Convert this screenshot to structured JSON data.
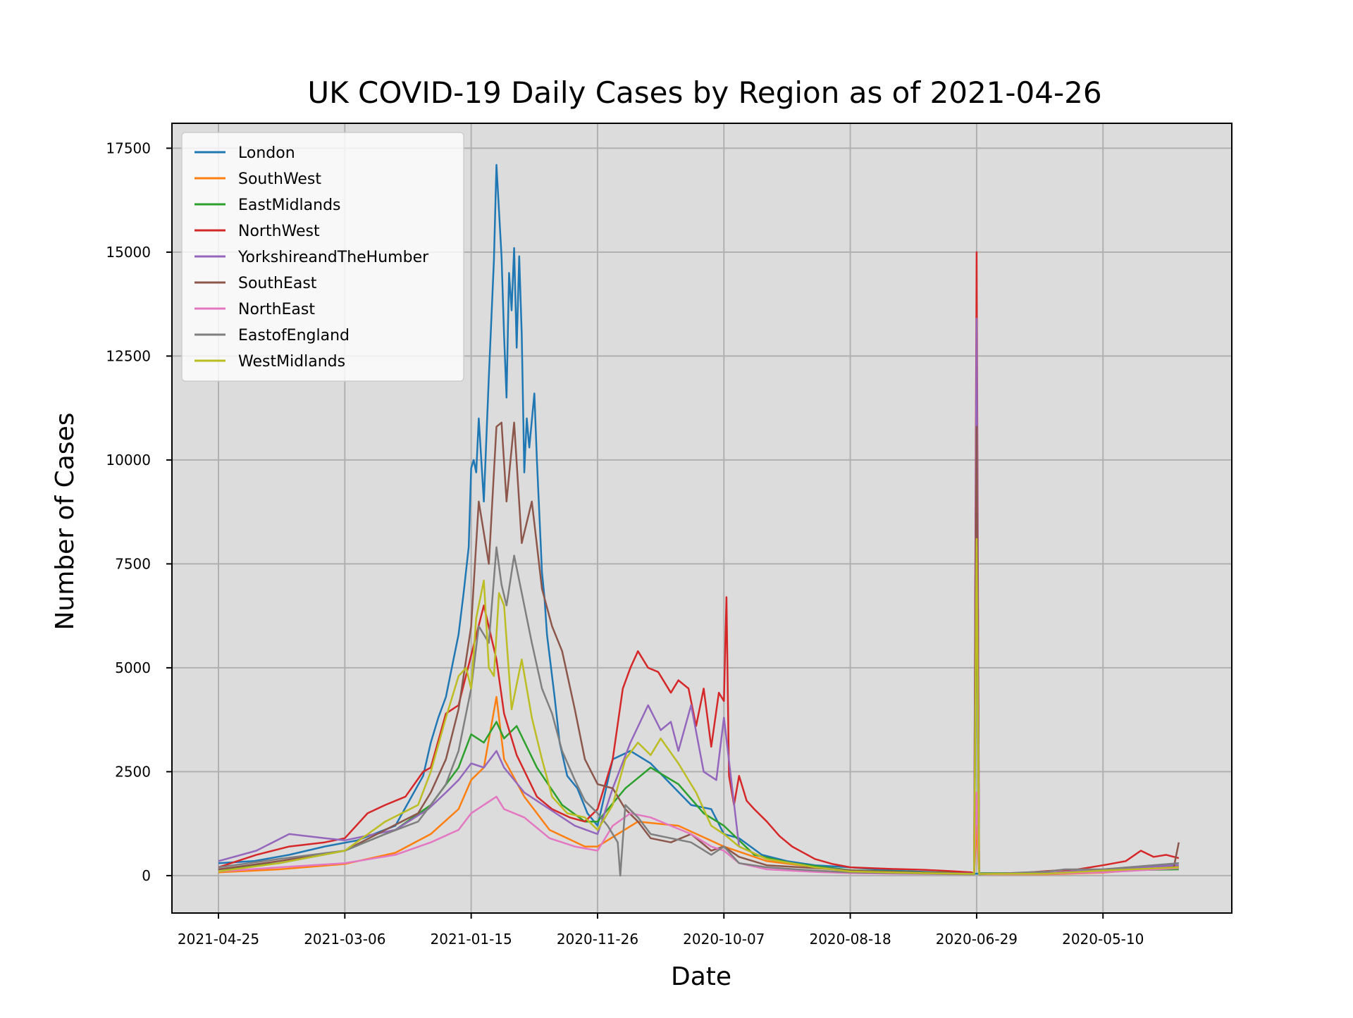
{
  "chart_data": {
    "type": "line",
    "title": "UK COVID-19 Daily Cases by Region as of 2021-04-26",
    "xlabel": "Date",
    "ylabel": "Number of Cases",
    "x_axis_direction": "reversed (newest date on the left)",
    "x_range": [
      "2021-04-25",
      "2020-04-08"
    ],
    "xticks": [
      "2021-04-25",
      "2021-03-06",
      "2021-01-15",
      "2020-11-26",
      "2020-10-07",
      "2020-08-18",
      "2020-06-29",
      "2020-05-10"
    ],
    "ylim": [
      -900,
      18100
    ],
    "yticks": [
      0,
      2500,
      5000,
      7500,
      10000,
      12500,
      15000,
      17500
    ],
    "grid": true,
    "background": "#dcdcdc",
    "legend_position": "top-left",
    "series": [
      {
        "name": "London",
        "color": "#1f77b4",
        "x": [
          "2021-04-25",
          "2021-04-11",
          "2021-03-28",
          "2021-03-14",
          "2021-03-01",
          "2021-02-14",
          "2021-02-03",
          "2021-01-31",
          "2021-01-28",
          "2021-01-25",
          "2021-01-22",
          "2021-01-20",
          "2021-01-18",
          "2021-01-16",
          "2021-01-15",
          "2021-01-14",
          "2021-01-13",
          "2021-01-12",
          "2021-01-10",
          "2021-01-08",
          "2021-01-06",
          "2021-01-05",
          "2021-01-03",
          "2021-01-02",
          "2021-01-01",
          "2020-12-31",
          "2020-12-30",
          "2020-12-29",
          "2020-12-28",
          "2020-12-27",
          "2020-12-26",
          "2020-12-25",
          "2020-12-24",
          "2020-12-23",
          "2020-12-21",
          "2020-12-20",
          "2020-12-18",
          "2020-12-17",
          "2020-12-16",
          "2020-12-15",
          "2020-12-13",
          "2020-12-11",
          "2020-12-08",
          "2020-12-04",
          "2020-11-30",
          "2020-11-26",
          "2020-11-20",
          "2020-11-13",
          "2020-11-05",
          "2020-10-28",
          "2020-10-20",
          "2020-10-12",
          "2020-10-07",
          "2020-10-01",
          "2020-09-22",
          "2020-09-12",
          "2020-09-01",
          "2020-08-18",
          "2020-08-01",
          "2020-07-15",
          "2020-07-01",
          "2020-06-30",
          "2020-06-29",
          "2020-06-28",
          "2020-06-20",
          "2020-06-05",
          "2020-05-20",
          "2020-05-10",
          "2020-04-25",
          "2020-04-10"
        ],
        "y": [
          300,
          350,
          500,
          700,
          850,
          1200,
          2400,
          3200,
          3800,
          4300,
          5200,
          5800,
          6800,
          7900,
          9800,
          10000,
          9700,
          11000,
          9000,
          12000,
          14800,
          17100,
          14900,
          13000,
          11500,
          14500,
          13600,
          15100,
          12700,
          14900,
          13000,
          9700,
          11000,
          10300,
          11600,
          10000,
          7300,
          6700,
          5800,
          5300,
          4300,
          3200,
          2400,
          2100,
          1500,
          1200,
          2800,
          3000,
          2700,
          2200,
          1700,
          1600,
          1000,
          900,
          500,
          350,
          250,
          200,
          120,
          80,
          60,
          40,
          50,
          40,
          40,
          40,
          60,
          110,
          200,
          300
        ]
      },
      {
        "name": "SouthWest",
        "color": "#ff7f0e",
        "x": [
          "2021-04-25",
          "2021-04-01",
          "2021-03-06",
          "2021-02-14",
          "2021-01-31",
          "2021-01-20",
          "2021-01-15",
          "2021-01-10",
          "2021-01-05",
          "2021-01-02",
          "2020-12-25",
          "2020-12-15",
          "2020-12-01",
          "2020-11-26",
          "2020-11-10",
          "2020-10-25",
          "2020-10-07",
          "2020-09-20",
          "2020-08-18",
          "2020-07-20",
          "2020-06-30",
          "2020-06-29",
          "2020-06-28",
          "2020-06-01",
          "2020-05-10",
          "2020-04-10"
        ],
        "y": [
          80,
          150,
          280,
          550,
          1000,
          1600,
          2300,
          2600,
          4300,
          2800,
          1900,
          1100,
          700,
          700,
          1300,
          1200,
          700,
          350,
          100,
          50,
          30,
          1200,
          30,
          30,
          70,
          220
        ]
      },
      {
        "name": "EastMidlands",
        "color": "#2ca02c",
        "x": [
          "2021-04-25",
          "2021-04-01",
          "2021-03-06",
          "2021-02-14",
          "2021-01-31",
          "2021-01-20",
          "2021-01-15",
          "2021-01-10",
          "2021-01-05",
          "2021-01-02",
          "2020-12-28",
          "2020-12-20",
          "2020-12-10",
          "2020-12-01",
          "2020-11-26",
          "2020-11-15",
          "2020-11-05",
          "2020-10-25",
          "2020-10-15",
          "2020-10-07",
          "2020-09-25",
          "2020-09-10",
          "2020-08-18",
          "2020-07-20",
          "2020-06-30",
          "2020-06-29",
          "2020-06-28",
          "2020-06-01",
          "2020-05-10",
          "2020-04-10"
        ],
        "y": [
          150,
          300,
          600,
          1100,
          1700,
          2600,
          3400,
          3200,
          3700,
          3300,
          3600,
          2600,
          1700,
          1300,
          1300,
          2100,
          2600,
          2200,
          1500,
          1200,
          500,
          300,
          130,
          80,
          60,
          7500,
          60,
          60,
          120,
          150
        ]
      },
      {
        "name": "NorthWest",
        "color": "#d62728",
        "x": [
          "2021-04-25",
          "2021-04-10",
          "2021-03-28",
          "2021-03-14",
          "2021-03-06",
          "2021-02-25",
          "2021-02-18",
          "2021-02-10",
          "2021-02-03",
          "2021-01-31",
          "2021-01-25",
          "2021-01-20",
          "2021-01-15",
          "2021-01-10",
          "2021-01-05",
          "2021-01-02",
          "2020-12-28",
          "2020-12-20",
          "2020-12-14",
          "2020-12-07",
          "2020-12-01",
          "2020-11-26",
          "2020-11-20",
          "2020-11-16",
          "2020-11-13",
          "2020-11-10",
          "2020-11-06",
          "2020-11-02",
          "2020-10-28",
          "2020-10-25",
          "2020-10-21",
          "2020-10-18",
          "2020-10-15",
          "2020-10-12",
          "2020-10-09",
          "2020-10-07",
          "2020-10-06",
          "2020-10-05",
          "2020-10-03",
          "2020-10-01",
          "2020-09-28",
          "2020-09-25",
          "2020-09-20",
          "2020-09-15",
          "2020-09-10",
          "2020-09-01",
          "2020-08-25",
          "2020-08-18",
          "2020-08-10",
          "2020-08-01",
          "2020-07-20",
          "2020-07-10",
          "2020-07-01",
          "2020-06-30",
          "2020-06-29",
          "2020-06-28",
          "2020-06-20",
          "2020-06-10",
          "2020-06-01",
          "2020-05-20",
          "2020-05-10",
          "2020-05-01",
          "2020-04-25",
          "2020-04-20",
          "2020-04-15",
          "2020-04-10"
        ],
        "y": [
          200,
          500,
          700,
          800,
          900,
          1500,
          1700,
          1900,
          2500,
          2600,
          3900,
          4100,
          5300,
          6500,
          5200,
          3900,
          2900,
          1900,
          1600,
          1400,
          1300,
          1600,
          2800,
          4500,
          5000,
          5400,
          5000,
          4900,
          4400,
          4700,
          4500,
          3600,
          4500,
          3100,
          4400,
          4200,
          6700,
          2400,
          1700,
          2400,
          1800,
          1600,
          1300,
          950,
          700,
          400,
          280,
          200,
          180,
          160,
          140,
          110,
          80,
          50,
          15000,
          40,
          50,
          70,
          110,
          150,
          250,
          350,
          600,
          450,
          500,
          420
        ]
      },
      {
        "name": "YorkshireandTheHumber",
        "color": "#9467bd",
        "x": [
          "2021-04-25",
          "2021-04-10",
          "2021-03-28",
          "2021-03-14",
          "2021-03-06",
          "2021-02-14",
          "2021-02-01",
          "2021-01-25",
          "2021-01-20",
          "2021-01-15",
          "2021-01-10",
          "2021-01-05",
          "2021-01-02",
          "2020-12-25",
          "2020-12-15",
          "2020-12-05",
          "2020-11-26",
          "2020-11-20",
          "2020-11-13",
          "2020-11-06",
          "2020-11-01",
          "2020-10-28",
          "2020-10-25",
          "2020-10-20",
          "2020-10-15",
          "2020-10-10",
          "2020-10-07",
          "2020-10-01",
          "2020-09-20",
          "2020-09-01",
          "2020-08-18",
          "2020-07-20",
          "2020-06-30",
          "2020-06-29",
          "2020-06-28",
          "2020-06-01",
          "2020-05-10",
          "2020-04-10"
        ],
        "y": [
          350,
          600,
          1000,
          900,
          850,
          1100,
          1600,
          2000,
          2300,
          2700,
          2600,
          3000,
          2600,
          2000,
          1600,
          1200,
          1000,
          2100,
          3200,
          4100,
          3500,
          3700,
          3000,
          4100,
          2500,
          2300,
          3800,
          700,
          400,
          200,
          120,
          70,
          50,
          13400,
          50,
          60,
          150,
          250
        ]
      },
      {
        "name": "SouthEast",
        "color": "#8c564b",
        "x": [
          "2021-04-25",
          "2021-04-01",
          "2021-03-06",
          "2021-02-18",
          "2021-02-05",
          "2021-01-31",
          "2021-01-25",
          "2021-01-20",
          "2021-01-15",
          "2021-01-12",
          "2021-01-08",
          "2021-01-05",
          "2021-01-03",
          "2021-01-01",
          "2020-12-29",
          "2020-12-26",
          "2020-12-22",
          "2020-12-18",
          "2020-12-14",
          "2020-12-10",
          "2020-12-05",
          "2020-12-01",
          "2020-11-26",
          "2020-11-20",
          "2020-11-15",
          "2020-11-10",
          "2020-11-05",
          "2020-10-28",
          "2020-10-20",
          "2020-10-12",
          "2020-10-07",
          "2020-10-01",
          "2020-09-20",
          "2020-09-01",
          "2020-08-18",
          "2020-07-20",
          "2020-06-30",
          "2020-06-29",
          "2020-06-28",
          "2020-06-01",
          "2020-05-10",
          "2020-04-12",
          "2020-04-10"
        ],
        "y": [
          150,
          350,
          600,
          1100,
          1500,
          2000,
          2800,
          4000,
          6000,
          9000,
          7500,
          10800,
          10900,
          9000,
          10900,
          8000,
          9000,
          6900,
          6000,
          5400,
          4000,
          2800,
          2200,
          2100,
          1600,
          1300,
          900,
          800,
          1000,
          600,
          700,
          450,
          250,
          180,
          120,
          70,
          40,
          10800,
          40,
          50,
          90,
          200,
          800
        ]
      },
      {
        "name": "NorthEast",
        "color": "#e377c2",
        "x": [
          "2021-04-25",
          "2021-04-01",
          "2021-03-06",
          "2021-02-14",
          "2021-01-31",
          "2021-01-20",
          "2021-01-15",
          "2021-01-10",
          "2021-01-05",
          "2021-01-02",
          "2020-12-25",
          "2020-12-15",
          "2020-12-05",
          "2020-11-26",
          "2020-11-20",
          "2020-11-13",
          "2020-11-05",
          "2020-10-28",
          "2020-10-20",
          "2020-10-12",
          "2020-10-07",
          "2020-10-01",
          "2020-09-20",
          "2020-09-01",
          "2020-08-18",
          "2020-07-20",
          "2020-06-30",
          "2020-06-29",
          "2020-06-28",
          "2020-06-01",
          "2020-05-10",
          "2020-04-10"
        ],
        "y": [
          100,
          200,
          300,
          500,
          800,
          1100,
          1500,
          1700,
          1900,
          1600,
          1400,
          900,
          700,
          600,
          1200,
          1500,
          1400,
          1200,
          1000,
          700,
          600,
          300,
          150,
          90,
          60,
          40,
          30,
          2000,
          30,
          40,
          80,
          180
        ]
      },
      {
        "name": "EastofEngland",
        "color": "#7f7f7f",
        "x": [
          "2021-04-25",
          "2021-04-01",
          "2021-03-06",
          "2021-02-18",
          "2021-02-05",
          "2021-01-31",
          "2021-01-25",
          "2021-01-20",
          "2021-01-15",
          "2021-01-12",
          "2021-01-08",
          "2021-01-05",
          "2021-01-03",
          "2021-01-01",
          "2020-12-29",
          "2020-12-26",
          "2020-12-22",
          "2020-12-18",
          "2020-12-14",
          "2020-12-10",
          "2020-12-05",
          "2020-12-01",
          "2020-11-26",
          "2020-11-22",
          "2020-11-18",
          "2020-11-17",
          "2020-11-15",
          "2020-11-10",
          "2020-11-05",
          "2020-10-28",
          "2020-10-20",
          "2020-10-12",
          "2020-10-07",
          "2020-10-01",
          "2020-09-20",
          "2020-09-01",
          "2020-08-18",
          "2020-07-20",
          "2020-06-30",
          "2020-06-29",
          "2020-06-28",
          "2020-06-01",
          "2020-05-25",
          "2020-05-10",
          "2020-04-10"
        ],
        "y": [
          200,
          400,
          600,
          1000,
          1300,
          1700,
          2200,
          3000,
          4500,
          6000,
          5600,
          7900,
          7000,
          6500,
          7700,
          6800,
          5600,
          4500,
          3900,
          3000,
          2300,
          1800,
          1500,
          1200,
          800,
          0,
          1700,
          1400,
          1000,
          900,
          800,
          500,
          700,
          300,
          200,
          120,
          80,
          50,
          30,
          8000,
          30,
          100,
          150,
          150,
          300
        ]
      },
      {
        "name": "WestMidlands",
        "color": "#bcbd22",
        "x": [
          "2021-04-25",
          "2021-04-01",
          "2021-03-06",
          "2021-02-18",
          "2021-02-05",
          "2021-01-31",
          "2021-01-25",
          "2021-01-20",
          "2021-01-17",
          "2021-01-15",
          "2021-01-13",
          "2021-01-10",
          "2021-01-08",
          "2021-01-06",
          "2021-01-04",
          "2021-01-02",
          "2020-12-30",
          "2020-12-26",
          "2020-12-22",
          "2020-12-18",
          "2020-12-14",
          "2020-12-08",
          "2020-12-01",
          "2020-11-26",
          "2020-11-20",
          "2020-11-15",
          "2020-11-10",
          "2020-11-05",
          "2020-11-01",
          "2020-10-25",
          "2020-10-18",
          "2020-10-12",
          "2020-10-07",
          "2020-10-01",
          "2020-09-20",
          "2020-09-01",
          "2020-08-18",
          "2020-07-20",
          "2020-06-30",
          "2020-06-29",
          "2020-06-28",
          "2020-06-01",
          "2020-05-10",
          "2020-04-10"
        ],
        "y": [
          100,
          300,
          600,
          1300,
          1700,
          2500,
          3800,
          4800,
          5000,
          4500,
          6200,
          7100,
          5000,
          4800,
          6800,
          6500,
          4000,
          5200,
          3800,
          2800,
          1900,
          1500,
          1400,
          1100,
          1700,
          2800,
          3200,
          2900,
          3300,
          2700,
          2000,
          1200,
          1000,
          700,
          400,
          200,
          100,
          60,
          40,
          8100,
          40,
          50,
          120,
          200
        ]
      }
    ]
  }
}
